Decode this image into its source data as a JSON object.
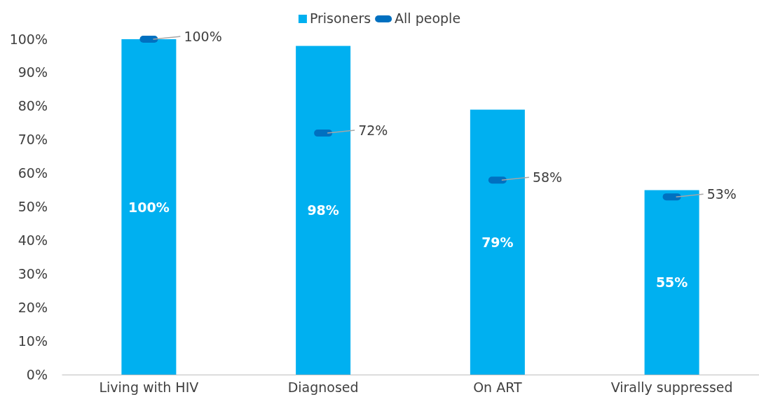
{
  "chart_data": {
    "type": "bar",
    "categories": [
      "Living with HIV",
      "Diagnosed",
      "On ART",
      "Virally suppressed"
    ],
    "series": [
      {
        "name": "Prisoners",
        "type": "bar",
        "color": "#00b0f0",
        "values": [
          100,
          98,
          79,
          55
        ],
        "value_labels": [
          "100%",
          "98%",
          "79%",
          "55%"
        ]
      },
      {
        "name": "All people",
        "type": "scatter",
        "color": "#0070c0",
        "values": [
          100,
          72,
          58,
          53
        ],
        "value_labels": [
          "100%",
          "72%",
          "58%",
          "53%"
        ]
      }
    ],
    "ylim": [
      0,
      100
    ],
    "yticks": [
      {
        "value": 0,
        "label": "0%"
      },
      {
        "value": 10,
        "label": "10%"
      },
      {
        "value": 20,
        "label": "20%"
      },
      {
        "value": 30,
        "label": "30%"
      },
      {
        "value": 40,
        "label": "40%"
      },
      {
        "value": 50,
        "label": "50%"
      },
      {
        "value": 60,
        "label": "60%"
      },
      {
        "value": 70,
        "label": "70%"
      },
      {
        "value": 80,
        "label": "80%"
      },
      {
        "value": 90,
        "label": "90%"
      },
      {
        "value": 100,
        "label": "100%"
      }
    ],
    "grid": false,
    "legend": "top",
    "marker": "square"
  }
}
